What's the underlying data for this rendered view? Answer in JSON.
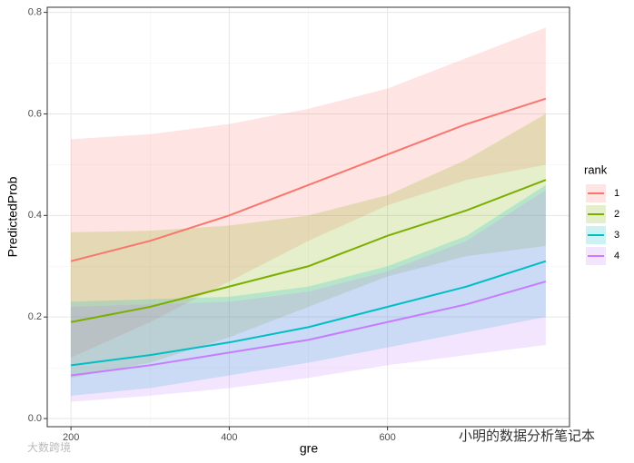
{
  "chart_data": {
    "type": "line",
    "x_label": "gre",
    "y_label": "PredictedProb",
    "legend_title": "rank",
    "legend_position": "right",
    "grid": true,
    "x": [
      200,
      300,
      400,
      500,
      600,
      700,
      800
    ],
    "xlim": [
      170,
      830
    ],
    "xticks": [
      200,
      400,
      600
    ],
    "ylim": [
      -0.016,
      0.81
    ],
    "yticks": [
      0.0,
      0.2,
      0.4,
      0.6,
      0.8
    ],
    "series": [
      {
        "name": "1",
        "color": "#F8766D",
        "values": [
          0.31,
          0.35,
          0.4,
          0.46,
          0.52,
          0.58,
          0.63
        ],
        "lower": [
          0.12,
          0.19,
          0.27,
          0.35,
          0.42,
          0.47,
          0.5
        ],
        "upper": [
          0.55,
          0.56,
          0.58,
          0.61,
          0.65,
          0.71,
          0.77
        ]
      },
      {
        "name": "2",
        "color": "#7CAE00",
        "values": [
          0.19,
          0.22,
          0.26,
          0.3,
          0.36,
          0.41,
          0.47
        ],
        "lower": [
          0.08,
          0.11,
          0.16,
          0.22,
          0.28,
          0.32,
          0.34
        ],
        "upper": [
          0.367,
          0.37,
          0.38,
          0.4,
          0.44,
          0.51,
          0.6
        ]
      },
      {
        "name": "3",
        "color": "#00BFC4",
        "values": [
          0.105,
          0.125,
          0.15,
          0.18,
          0.22,
          0.26,
          0.31
        ],
        "lower": [
          0.045,
          0.06,
          0.085,
          0.11,
          0.14,
          0.17,
          0.2
        ],
        "upper": [
          0.23,
          0.235,
          0.24,
          0.26,
          0.3,
          0.36,
          0.46
        ]
      },
      {
        "name": "4",
        "color": "#C77CFF",
        "values": [
          0.085,
          0.105,
          0.13,
          0.155,
          0.19,
          0.225,
          0.27
        ],
        "lower": [
          0.033,
          0.045,
          0.06,
          0.08,
          0.105,
          0.125,
          0.145
        ],
        "upper": [
          0.22,
          0.225,
          0.23,
          0.25,
          0.29,
          0.35,
          0.45
        ]
      }
    ]
  },
  "watermarks": [
    "小明的数据分析笔记本",
    "大数跨境"
  ]
}
